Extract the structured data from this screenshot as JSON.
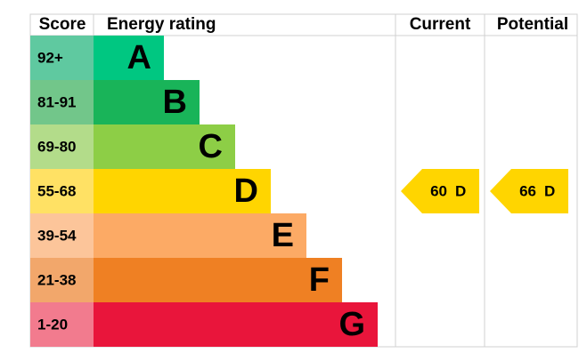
{
  "header": {
    "score": "Score",
    "rating": "Energy rating",
    "current": "Current",
    "potential": "Potential"
  },
  "rows": [
    {
      "score": "92+",
      "band": "A"
    },
    {
      "score": "81-91",
      "band": "B"
    },
    {
      "score": "69-80",
      "band": "C"
    },
    {
      "score": "55-68",
      "band": "D"
    },
    {
      "score": "39-54",
      "band": "E"
    },
    {
      "score": "21-38",
      "band": "F"
    },
    {
      "score": "1-20",
      "band": "G"
    }
  ],
  "current": {
    "score": 60,
    "band": "D"
  },
  "potential": {
    "score": 66,
    "band": "D"
  }
}
